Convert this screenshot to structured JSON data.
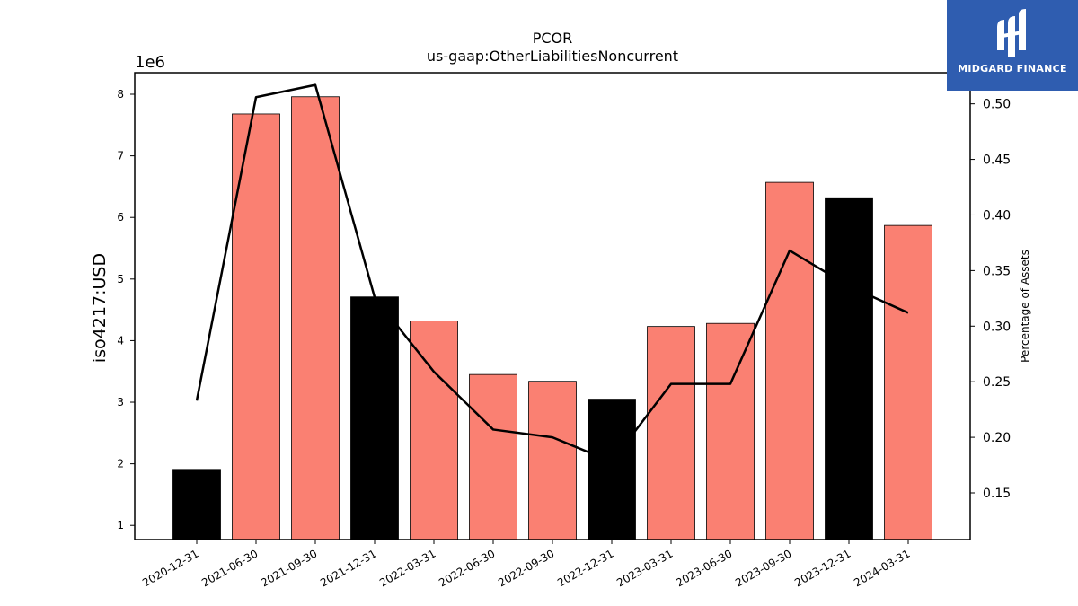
{
  "chart_data": {
    "type": "bar",
    "title": "PCOR",
    "subtitle": "us-gaap:OtherLiabilitiesNoncurrent",
    "ylabel": "iso4217:USD",
    "y_offset_label": "1e6",
    "y2label": "Percentage of Assets",
    "categories": [
      "2020-12-31",
      "2021-06-30",
      "2021-09-30",
      "2021-12-31",
      "2022-03-31",
      "2022-06-30",
      "2022-09-30",
      "2022-12-31",
      "2023-03-31",
      "2023-06-30",
      "2023-09-30",
      "2023-12-31",
      "2024-03-31"
    ],
    "values": [
      1910000,
      7680000,
      7960000,
      4710000,
      4320000,
      3450000,
      3340000,
      3050000,
      4230000,
      4280000,
      6570000,
      6320000,
      5870000
    ],
    "bar_highlight": [
      true,
      false,
      false,
      true,
      false,
      false,
      false,
      true,
      false,
      false,
      false,
      true,
      false
    ],
    "colors": {
      "bar": "#fa8072",
      "highlight_bar": "#000000",
      "line": "#000000"
    },
    "ylim": [
      0.77,
      8.35
    ],
    "yticks": [
      1,
      2,
      3,
      4,
      5,
      6,
      7,
      8
    ],
    "series": [
      {
        "name": "Percentage of Assets",
        "axis": "right",
        "type": "line",
        "values": [
          0.233,
          0.506,
          0.517,
          0.326,
          0.259,
          0.207,
          0.2,
          0.178,
          0.248,
          0.248,
          0.368,
          0.336,
          0.312
        ]
      }
    ],
    "y2lim": [
      0.108,
      0.528
    ],
    "y2ticks": [
      "0.15",
      "0.20",
      "0.25",
      "0.30",
      "0.35",
      "0.40",
      "0.45",
      "0.50"
    ]
  },
  "logo": {
    "text": "MIDGARD FINANCE",
    "icon": "midgard-logo-icon"
  }
}
